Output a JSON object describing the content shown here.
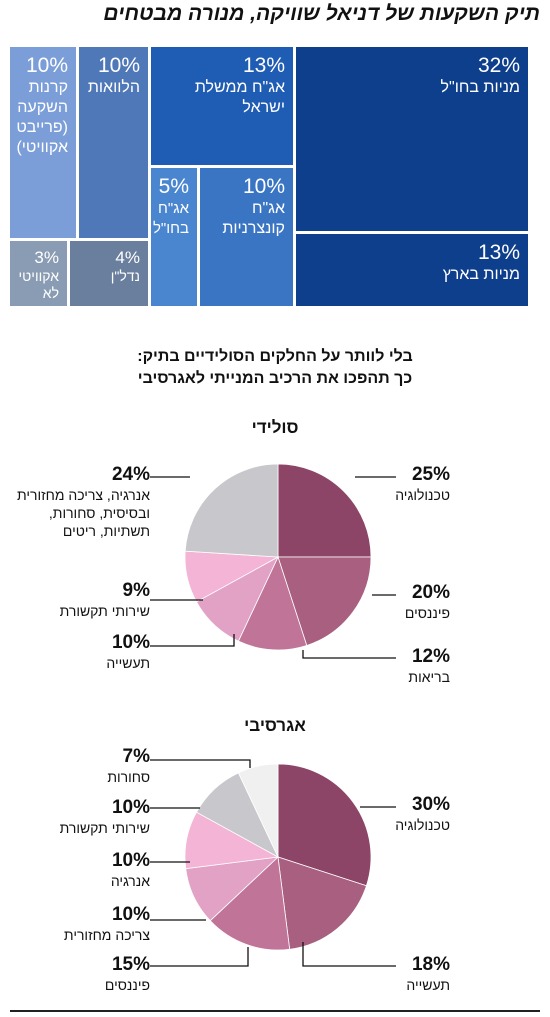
{
  "title": "תיק השקעות של דניאל שוויקה, מנורה מבטחים",
  "treemap": [
    {
      "pct": "32%",
      "label": "מניות בחו\"ל",
      "color": "#0d3f8c"
    },
    {
      "pct": "13%",
      "label": "מניות בארץ",
      "color": "#0d3f8c"
    },
    {
      "pct": "13%",
      "label": "אג\"ח ממשלת ישראל",
      "color": "#1f5cb3"
    },
    {
      "pct": "10%",
      "label": "אג\"ח קונצרניות",
      "color": "#3a75c4"
    },
    {
      "pct": "5%",
      "label": "אג\"ח בחו\"ל",
      "color": "#4a86d0"
    },
    {
      "pct": "10%",
      "label": "הלוואות",
      "color": "#4f78b8"
    },
    {
      "pct": "10%",
      "label": "קרנות השקעה (פרייבט אקוויטי)",
      "color": "#7b9ed8"
    },
    {
      "pct": "4%",
      "label": "נדל\"ן",
      "color": "#6a7f9d"
    },
    {
      "pct": "3%",
      "label": "אקוויטי לא סחיר",
      "color": "#8a9cb3"
    }
  ],
  "subtitle": {
    "line1": "בלי לוותר על החלקים הסולידיים בתיק:",
    "line2": "כך תהפכו את הרכיב המנייתי לאגרסיבי"
  },
  "chart_data": [
    {
      "type": "pie",
      "title": "סולידי",
      "slices": [
        {
          "label": "טכנולוגיה",
          "value": 25,
          "color": "#8c4467"
        },
        {
          "label": "פיננסים",
          "value": 20,
          "color": "#a85f80"
        },
        {
          "label": "בריאות",
          "value": 12,
          "color": "#c07498"
        },
        {
          "label": "תעשייה",
          "value": 10,
          "color": "#e1a2c6"
        },
        {
          "label": "שירותי תקשורת",
          "value": 9,
          "color": "#f4b4d6"
        },
        {
          "label": "אנרגיה, צריכה מחזורית ובסיסית, סחורות, תשתיות, ריטים",
          "value": 24,
          "color": "#c8c8cc"
        }
      ]
    },
    {
      "type": "pie",
      "title": "אגרסיבי",
      "slices": [
        {
          "label": "טכנולוגיה",
          "value": 30,
          "color": "#8c4467"
        },
        {
          "label": "תעשייה",
          "value": 18,
          "color": "#a85f80"
        },
        {
          "label": "פיננסים",
          "value": 15,
          "color": "#c07498"
        },
        {
          "label": "צריכה מחזורית",
          "value": 10,
          "color": "#e1a2c6"
        },
        {
          "label": "אנרגיה",
          "value": 10,
          "color": "#f4b4d6"
        },
        {
          "label": "שירותי תקשורת",
          "value": 10,
          "color": "#c8c8cc"
        },
        {
          "label": "סחורות",
          "value": 7,
          "color": "#f0f0f0"
        }
      ]
    }
  ]
}
